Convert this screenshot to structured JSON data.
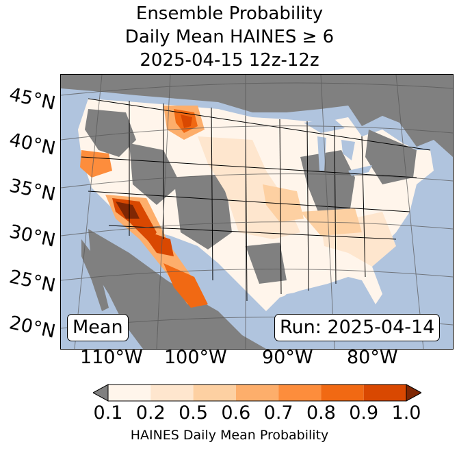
{
  "title": {
    "line1": "Ensemble Probability",
    "line2": "Daily Mean HAINES ≥ 6",
    "line3": "2025-04-15 12z-12z"
  },
  "map": {
    "lat_labels": [
      "45°N",
      "40°N",
      "35°N",
      "30°N",
      "25°N",
      "20°N"
    ],
    "lon_labels": [
      "110°W",
      "100°W",
      "90°W",
      "80°W"
    ],
    "stat_label": "Mean",
    "run_label": "Run: 2025-04-14",
    "colors": {
      "ocean": "#b0c4de",
      "no_data_land": "#808080",
      "border": "#000000",
      "grid": "#555555"
    },
    "probability_hotspots": [
      {
        "region": "Wyoming / Montana",
        "level": 0.8
      },
      {
        "region": "Nevada / Arizona / Sonora",
        "level": 0.9
      },
      {
        "region": "Northern California",
        "level": 0.7
      },
      {
        "region": "Chihuahua / Durango",
        "level": 0.8
      },
      {
        "region": "Kansas / Oklahoma",
        "level": 0.5
      },
      {
        "region": "Southeast US",
        "level": 0.5
      }
    ]
  },
  "colorbar": {
    "label": "HAINES Daily Mean Probability",
    "ticks": [
      "0.1",
      "0.2",
      "0.5",
      "0.6",
      "0.7",
      "0.8",
      "0.9",
      "1.0"
    ],
    "under_color": "#808080",
    "over_color": "#7f2704",
    "colors": [
      "#fff5eb",
      "#fee6ce",
      "#fdd0a2",
      "#fdae6b",
      "#fd8d3c",
      "#f16913",
      "#d94801"
    ]
  }
}
